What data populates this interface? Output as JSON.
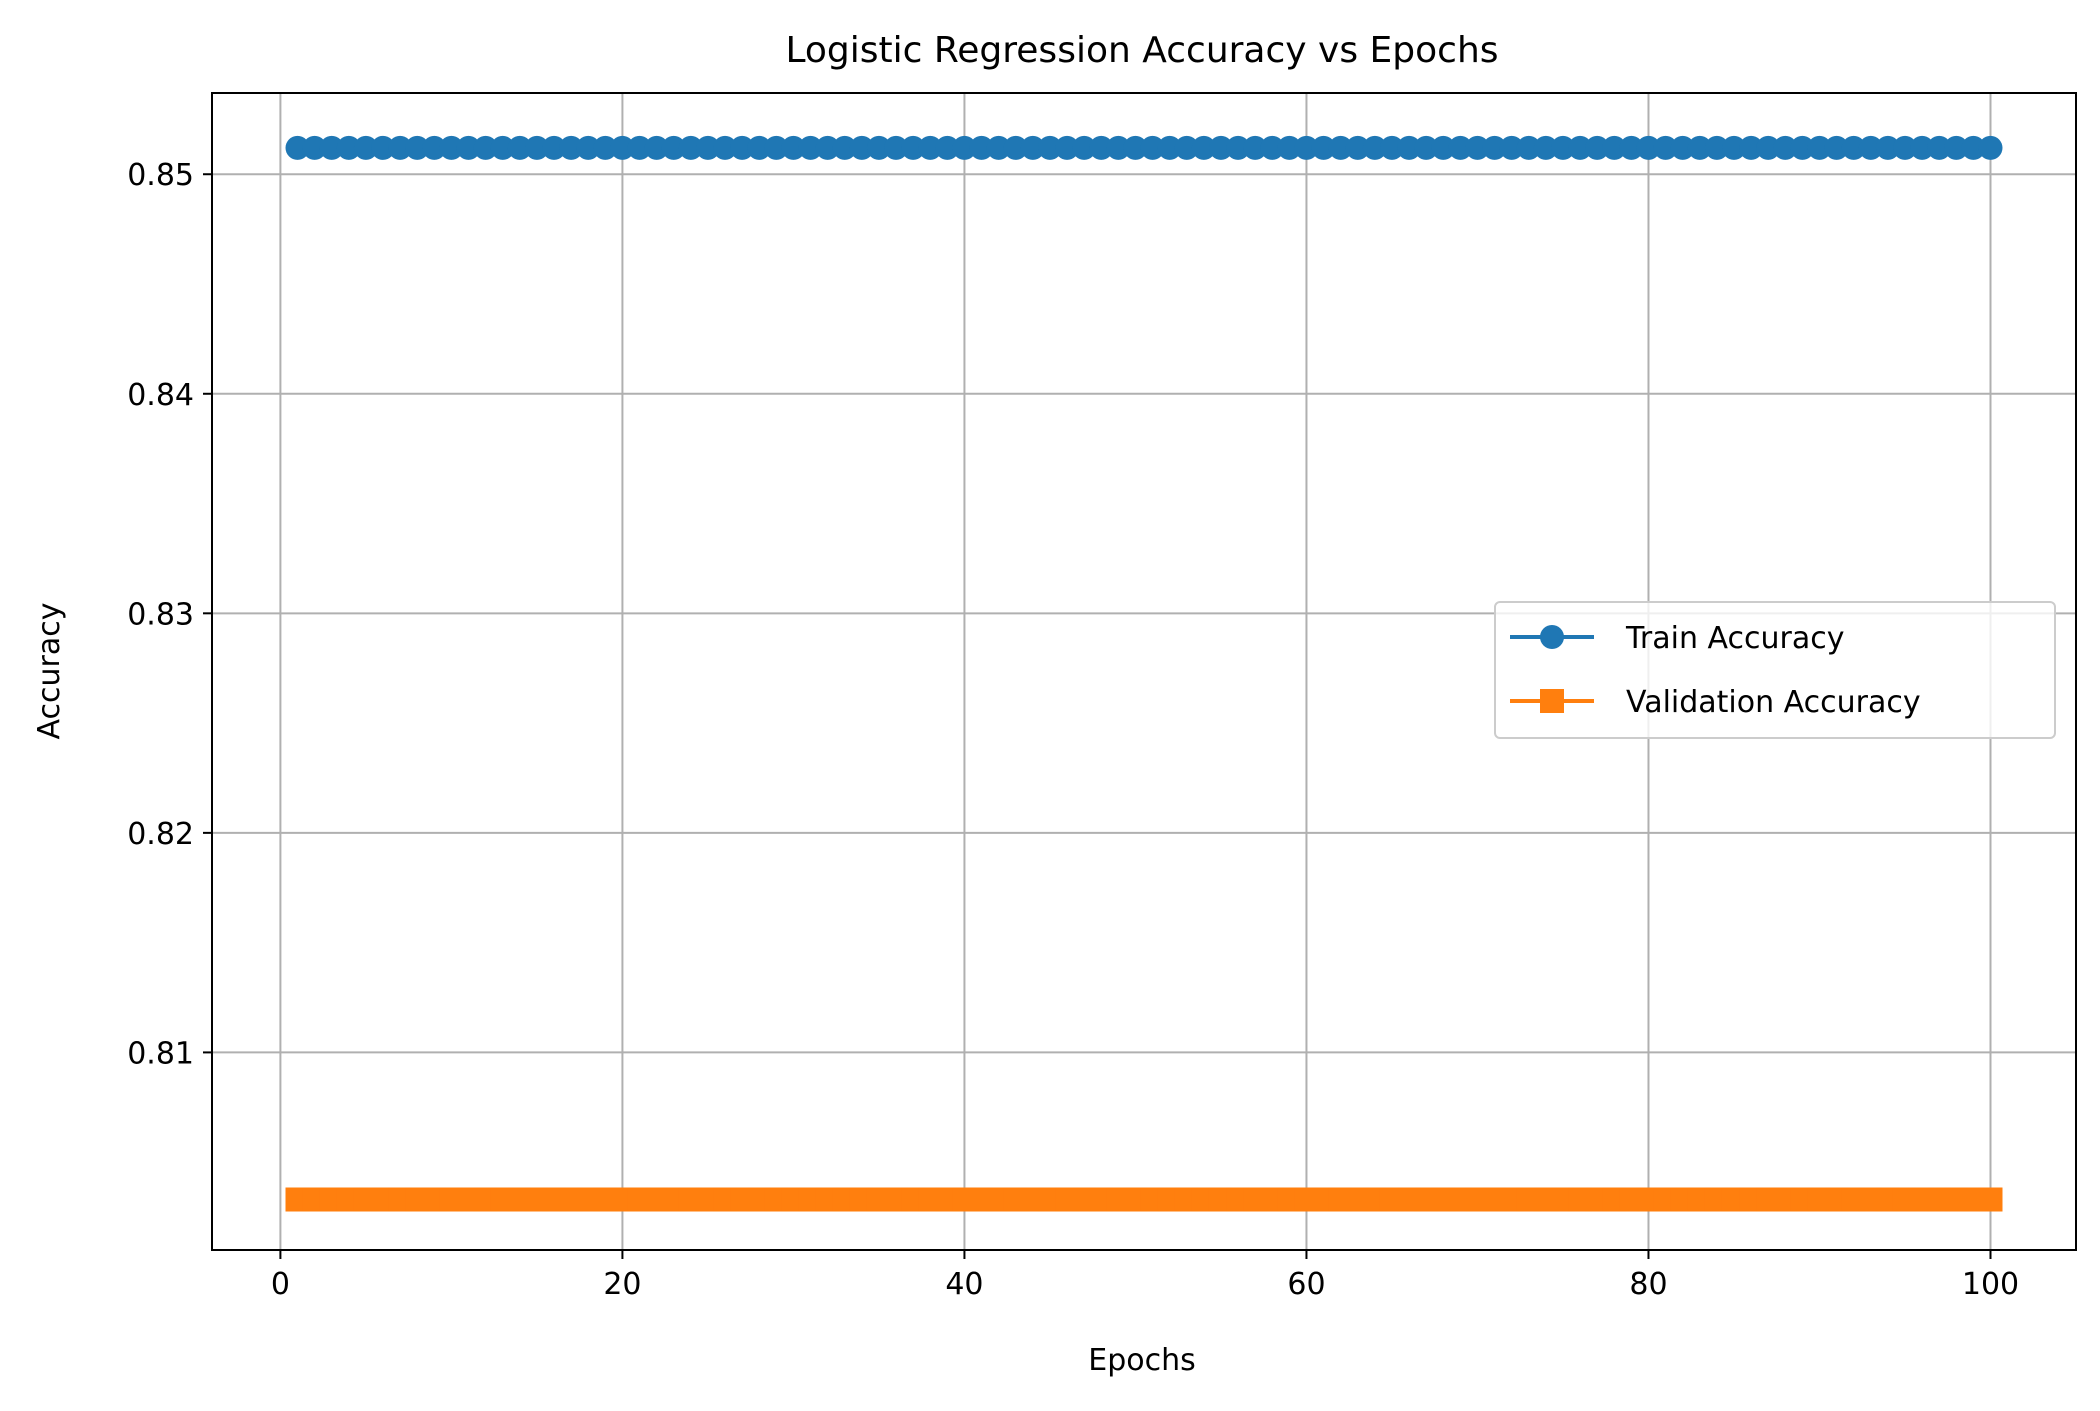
{
  "chart_data": {
    "type": "line",
    "title": "Logistic Regression Accuracy vs Epochs",
    "xlabel": "Epochs",
    "ylabel": "Accuracy",
    "xlim": [
      -4,
      105
    ],
    "ylim": [
      0.801,
      0.8537
    ],
    "xticks": [
      0,
      20,
      40,
      60,
      80,
      100
    ],
    "xtick_labels": [
      "0",
      "20",
      "40",
      "60",
      "80",
      "100"
    ],
    "yticks": [
      0.81,
      0.82,
      0.83,
      0.84,
      0.85
    ],
    "ytick_labels": [
      "0.81",
      "0.82",
      "0.83",
      "0.84",
      "0.85"
    ],
    "grid": true,
    "legend_position": "center-right",
    "x_start": 1,
    "x_end": 100,
    "series": [
      {
        "name": "Train Accuracy",
        "value": 0.8512,
        "marker": "circle",
        "color": "#1f77b4"
      },
      {
        "name": "Validation Accuracy",
        "value": 0.8033,
        "marker": "square",
        "color": "#ff7f0e"
      }
    ]
  }
}
